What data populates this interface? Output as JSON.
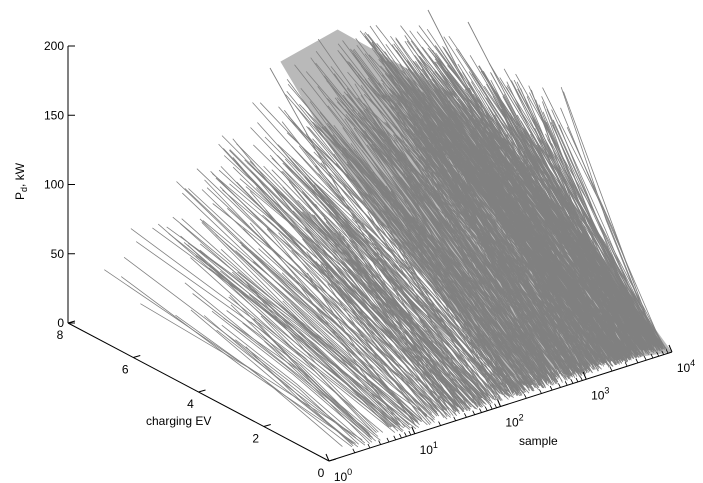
{
  "chart_data": {
    "type": "line",
    "title": "",
    "xlabel": "sample",
    "ylabel": "charging EV",
    "zlabel_main": "P",
    "zlabel_sub": "d",
    "zlabel_rest": ", kW",
    "x_scale": "log",
    "xlim": [
      1,
      10000
    ],
    "ylim": [
      0,
      8
    ],
    "zlim": [
      0,
      200
    ],
    "grid": false,
    "line_color": "#808080",
    "x_ticks": [
      {
        "base": "10",
        "exp": "0",
        "value": 1
      },
      {
        "base": "10",
        "exp": "1",
        "value": 10
      },
      {
        "base": "10",
        "exp": "2",
        "value": 100
      },
      {
        "base": "10",
        "exp": "3",
        "value": 1000
      },
      {
        "base": "10",
        "exp": "4",
        "value": 10000
      }
    ],
    "y_ticks": [
      {
        "label": "0",
        "value": 0
      },
      {
        "label": "2",
        "value": 2
      },
      {
        "label": "4",
        "value": 4
      },
      {
        "label": "6",
        "value": 6
      },
      {
        "label": "8",
        "value": 8
      }
    ],
    "z_ticks": [
      {
        "label": "0",
        "value": 0
      },
      {
        "label": "50",
        "value": 50
      },
      {
        "label": "100",
        "value": 100
      },
      {
        "label": "150",
        "value": 150
      },
      {
        "label": "200",
        "value": 200
      }
    ],
    "series": [
      {
        "values": [
          [
            1,
            8,
            0
          ],
          [
            1,
            0,
            0
          ]
        ]
      },
      {
        "values": [
          [
            10,
            4.2,
            20
          ],
          [
            10,
            0,
            0
          ]
        ]
      },
      {
        "values": [
          [
            100,
            8,
            175
          ],
          [
            100,
            0,
            0
          ]
        ]
      },
      {
        "values": [
          [
            1000,
            6,
            140
          ],
          [
            1000,
            0,
            0
          ]
        ]
      },
      {
        "values": [
          [
            10000,
            3,
            40
          ],
          [
            10000,
            0,
            0
          ]
        ]
      }
    ]
  }
}
